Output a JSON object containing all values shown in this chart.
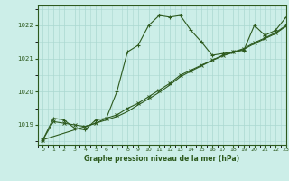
{
  "title": "Graphe pression niveau de la mer (hPa)",
  "background_color": "#cceee8",
  "grid_color": "#aad8d0",
  "line_color": "#2d5a1e",
  "xlim": [
    -0.5,
    23
  ],
  "ylim": [
    1018.4,
    1022.6
  ],
  "yticks": [
    1019,
    1020,
    1021,
    1022
  ],
  "xticks": [
    0,
    1,
    2,
    3,
    4,
    5,
    6,
    7,
    8,
    9,
    10,
    11,
    12,
    13,
    14,
    15,
    16,
    17,
    18,
    19,
    20,
    21,
    22,
    23
  ],
  "series1_x": [
    0,
    1,
    2,
    3,
    4,
    5,
    6,
    7,
    8,
    9,
    10,
    11,
    12,
    13,
    14,
    15,
    16,
    17,
    18,
    19,
    20,
    21,
    22,
    23
  ],
  "series1_y": [
    1018.55,
    1019.2,
    1019.15,
    1018.9,
    1018.85,
    1019.15,
    1019.2,
    1020.0,
    1021.2,
    1021.4,
    1022.0,
    1022.3,
    1022.25,
    1022.3,
    1021.85,
    1021.5,
    1021.1,
    1021.15,
    1021.2,
    1021.25,
    1022.0,
    1021.7,
    1021.85,
    1022.25
  ],
  "series2_x": [
    0,
    1,
    2,
    3,
    4,
    5,
    6,
    7,
    8,
    9,
    10,
    11,
    12,
    13,
    14,
    15,
    16,
    17,
    18,
    19,
    20,
    21,
    22,
    23
  ],
  "series2_y": [
    1018.55,
    1019.1,
    1019.05,
    1019.0,
    1018.95,
    1019.05,
    1019.2,
    1019.3,
    1019.5,
    1019.65,
    1019.85,
    1020.05,
    1020.25,
    1020.5,
    1020.65,
    1020.8,
    1020.95,
    1021.1,
    1021.2,
    1021.3,
    1021.48,
    1021.62,
    1021.78,
    1022.0
  ],
  "series3_x": [
    0,
    6,
    7,
    8,
    9,
    10,
    11,
    12,
    13,
    14,
    15,
    16,
    17,
    18,
    19,
    20,
    21,
    22,
    23
  ],
  "series3_y": [
    1018.55,
    1019.15,
    1019.25,
    1019.4,
    1019.6,
    1019.78,
    1019.98,
    1020.2,
    1020.45,
    1020.62,
    1020.78,
    1020.94,
    1021.08,
    1021.18,
    1021.28,
    1021.45,
    1021.6,
    1021.75,
    1021.98
  ]
}
